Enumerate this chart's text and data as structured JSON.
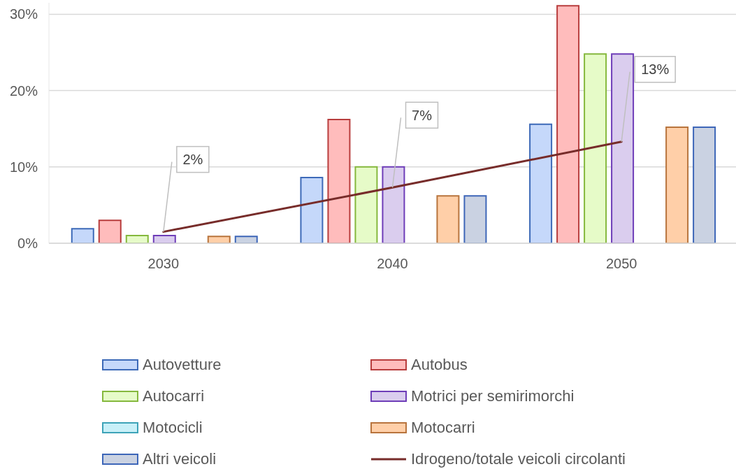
{
  "chart_data": {
    "type": "bar",
    "categories": [
      "2030",
      "2040",
      "2050"
    ],
    "series": [
      {
        "name": "Autovetture",
        "color": "#c5d8fa",
        "values": [
          1.9,
          8.6,
          15.6
        ]
      },
      {
        "name": "Autobus",
        "color": "#ffbcbc",
        "values": [
          3.0,
          16.2,
          31.1
        ]
      },
      {
        "name": "Autocarri",
        "color": "#e6fbc8",
        "values": [
          1.0,
          10.0,
          24.8
        ]
      },
      {
        "name": "Motrici per semirimorchi",
        "color": "#dacdee",
        "values": [
          1.0,
          10.0,
          24.8
        ]
      },
      {
        "name": "Motocicli",
        "color": "#c8f0f8",
        "values": [
          0,
          0,
          0
        ]
      },
      {
        "name": "Motocarri",
        "color": "#ffcfa8",
        "values": [
          0.9,
          6.2,
          15.2
        ]
      },
      {
        "name": "Altri veicoli",
        "color": "#cad2e2",
        "values": [
          0.9,
          6.2,
          15.2
        ]
      },
      {
        "name": "Idrogeno/totale veicoli circolanti",
        "type": "line",
        "color": "#772c2a",
        "values": [
          1.5,
          7.3,
          13.3
        ],
        "value_labels": [
          "2%",
          "7%",
          "13%"
        ]
      }
    ],
    "ylim": [
      0,
      31.5
    ],
    "yticks": [
      {
        "value": 0,
        "label": "0%"
      },
      {
        "value": 10,
        "label": "10%"
      },
      {
        "value": 20,
        "label": "20%"
      },
      {
        "value": 30,
        "label": "30%"
      }
    ],
    "grid": "y",
    "legend": "bottom",
    "marker": "none"
  }
}
